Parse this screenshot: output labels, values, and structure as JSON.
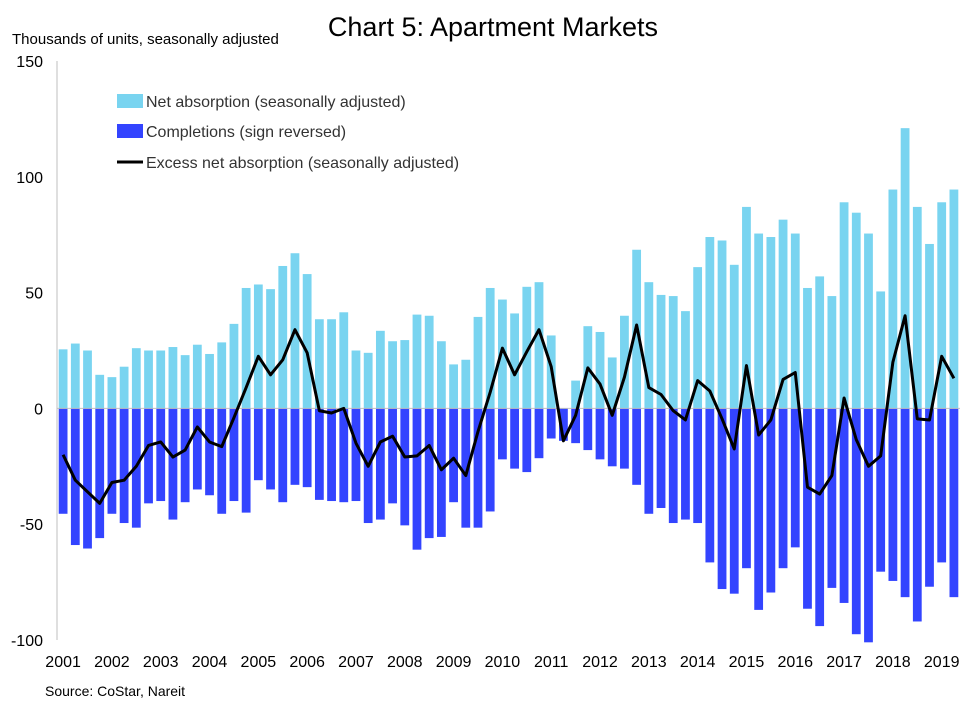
{
  "chart_data": {
    "type": "bar",
    "title": "Chart 5: Apartment Markets",
    "unit_label": "Thousands of units, seasonally adjusted",
    "source": "Source: CoStar, Nareit",
    "ylim": [
      -100,
      150
    ],
    "yticks": [
      "150",
      "100",
      "50",
      "0",
      "-50",
      "-100"
    ],
    "ytick_values": [
      150,
      100,
      50,
      0,
      -50,
      -100
    ],
    "year_labels": [
      "2001",
      "2002",
      "2003",
      "2004",
      "2005",
      "2006",
      "2007",
      "2008",
      "2009",
      "2010",
      "2011",
      "2012",
      "2013",
      "2014",
      "2015",
      "2016",
      "2017",
      "2018",
      "2019"
    ],
    "quarters_per_year": 4,
    "grid": false,
    "legend_position": "top-left",
    "colors": {
      "net_absorption": "#79d4f0",
      "completions": "#3344ff",
      "excess": "#000000",
      "axis": "#bfbfbf"
    },
    "series": [
      {
        "name": "Net absorption (seasonally adjusted)",
        "kind": "bar",
        "values": [
          25.5,
          28,
          25,
          14.5,
          13.5,
          18,
          26,
          25,
          25,
          26.5,
          23,
          27.5,
          23.5,
          28.5,
          36.5,
          52,
          53.5,
          51.5,
          61.5,
          67,
          58,
          38.5,
          38.5,
          41.5,
          25,
          24,
          33.5,
          29,
          29.5,
          40.5,
          40,
          29,
          19,
          21,
          39.5,
          52,
          47,
          41,
          52.5,
          54.5,
          31.5,
          0,
          12,
          35.5,
          33,
          22,
          40,
          68.5,
          54.5,
          49,
          48.5,
          42,
          61,
          74,
          72.5,
          62,
          87,
          75.5,
          74,
          81.5,
          75.5,
          52,
          57,
          48.5,
          89,
          84.5,
          75.5,
          50.5,
          94.5,
          121,
          87,
          71,
          89,
          94.5
        ]
      },
      {
        "name": "Completions (sign reversed)",
        "kind": "bar",
        "values": [
          -45.5,
          -59,
          -60.5,
          -56,
          -45.5,
          -49.5,
          -51.5,
          -41,
          -40,
          -48,
          -40.5,
          -35,
          -37.5,
          -45.5,
          -40,
          -45,
          -31,
          -35,
          -40.5,
          -33,
          -34,
          -39.5,
          -40,
          -40.5,
          -40,
          -49.5,
          -48,
          -41,
          -50.5,
          -61,
          -56,
          -55.5,
          -40.5,
          -51.5,
          -51.5,
          -44.5,
          -22,
          -26,
          -27.5,
          -21.5,
          -13,
          -14,
          -15,
          -18,
          -22,
          -25,
          -26,
          -33,
          -45.5,
          -43,
          -49.5,
          -48,
          -49.5,
          -66.5,
          -78,
          -80,
          -69,
          -87,
          -79.5,
          -69,
          -60,
          -86.5,
          -94,
          -77.5,
          -84,
          -97.5,
          -101,
          -70.5,
          -74.5,
          -81.5,
          -92,
          -77,
          -66.5,
          -81.5
        ]
      },
      {
        "name": "Excess net absorption (seasonally adjusted)",
        "kind": "line",
        "values": [
          -20,
          -31,
          -36,
          -41,
          -32,
          -31,
          -25,
          -16,
          -14.5,
          -21,
          -18,
          -8,
          -14.5,
          -16.5,
          -4,
          9,
          22.5,
          14.5,
          21,
          34,
          24,
          -1,
          -2,
          0,
          -15,
          -25,
          -14.5,
          -12,
          -21,
          -20.5,
          -16,
          -26.5,
          -21.5,
          -29,
          -10,
          7,
          26,
          14.5,
          24.5,
          34,
          18,
          -14,
          -3,
          17.5,
          10.5,
          -3,
          13.5,
          36,
          9,
          6,
          -1,
          -5,
          12,
          7.5,
          -4.5,
          -17.5,
          18.5,
          -11.5,
          -5,
          12.5,
          15.5,
          -34,
          -37,
          -29,
          4.5,
          -13.5,
          -25,
          -20.5,
          20,
          40,
          -4.5,
          -5,
          22.5,
          13
        ]
      }
    ]
  }
}
